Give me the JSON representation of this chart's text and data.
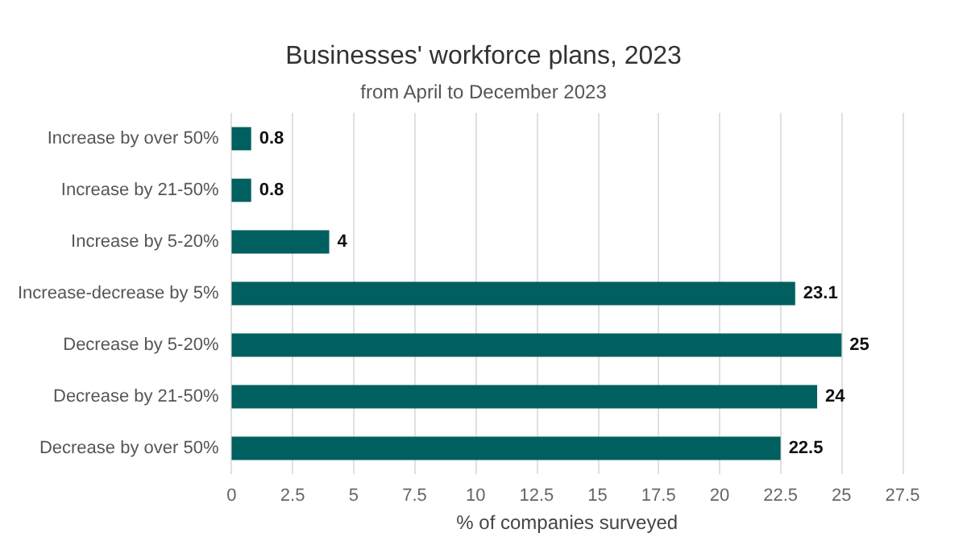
{
  "chart_data": {
    "type": "bar",
    "orientation": "horizontal",
    "title": "Businesses' workforce plans, 2023",
    "subtitle": "from April to December 2023",
    "xlabel": "% of companies surveyed",
    "categories": [
      "Increase by over 50%",
      "Increase by 21-50%",
      "Increase by 5-20%",
      "Increase-decrease by 5%",
      "Decrease by 5-20%",
      "Decrease by 21-50%",
      "Decrease by over 50%"
    ],
    "values": [
      0.8,
      0.8,
      4,
      23.1,
      25,
      24,
      22.5
    ],
    "color": "#005f5f",
    "xlim": [
      0,
      27.5
    ],
    "xticks": [
      0,
      2.5,
      5,
      7.5,
      10,
      12.5,
      15,
      17.5,
      20,
      22.5,
      25,
      27.5
    ],
    "grid": "x",
    "data_labels": true
  }
}
